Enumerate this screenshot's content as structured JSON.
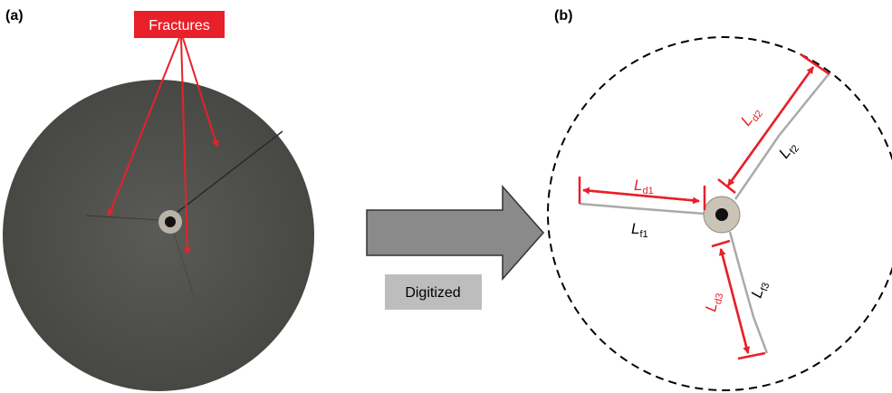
{
  "panel_a": {
    "label": "(a)",
    "callout": "Fractures"
  },
  "transition": {
    "label": "Digitized"
  },
  "panel_b": {
    "label": "(b)",
    "dimensions": [
      {
        "symbol": "L",
        "subscript": "d1"
      },
      {
        "symbol": "L",
        "subscript": "d2"
      },
      {
        "symbol": "L",
        "subscript": "d3"
      }
    ],
    "fractures": [
      {
        "symbol": "L",
        "subscript": "f1"
      },
      {
        "symbol": "L",
        "subscript": "f2"
      },
      {
        "symbol": "L",
        "subscript": "f3"
      }
    ]
  }
}
